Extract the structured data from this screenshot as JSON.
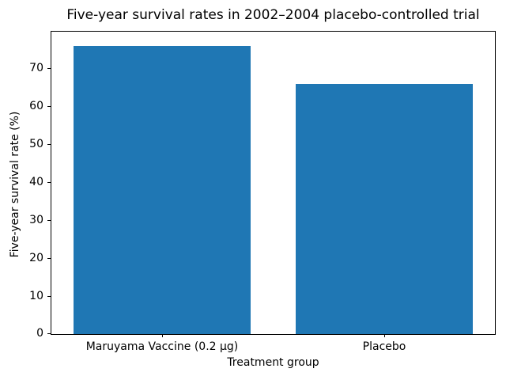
{
  "chart_data": {
    "type": "bar",
    "title": "Five-year survival rates in 2002–2004 placebo-controlled trial",
    "categories": [
      "Maruyama Vaccine (0.2 μg)",
      "Placebo"
    ],
    "values": [
      75.7,
      65.8
    ],
    "xlabel": "Treatment group",
    "ylabel": "Five-year survival rate (%)",
    "ylim": [
      0,
      79.5
    ],
    "yticks": [
      0,
      10,
      20,
      30,
      40,
      50,
      60,
      70
    ],
    "bar_color": "#1f77b4",
    "bar_width_fraction": 0.8,
    "grid": false,
    "legend_position": "none"
  }
}
